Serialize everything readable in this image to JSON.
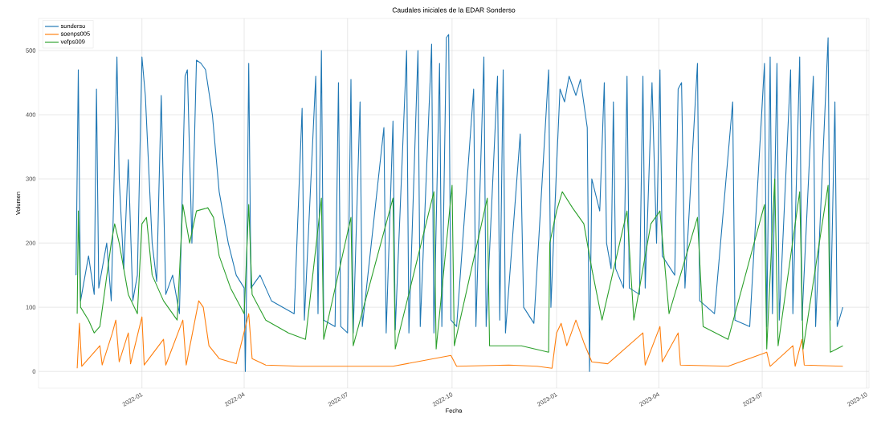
{
  "chart_data": {
    "type": "line",
    "title": "Caudales iniciales de la EDAR Sonderso",
    "xlabel": "Fecha",
    "ylabel": "Volumen",
    "xlim": [
      "2021-10-02",
      "2023-10-03"
    ],
    "xticks": [
      "2022-01",
      "2022-04",
      "2022-07",
      "2022-10",
      "2023-01",
      "2023-04",
      "2023-07",
      "2023-10"
    ],
    "ylim": [
      -26,
      550
    ],
    "yticks": [
      0,
      100,
      200,
      300,
      400,
      500
    ],
    "grid": true,
    "legend": "top left",
    "line_style": "solid",
    "marker": "none",
    "series": [
      {
        "name": "sonderso",
        "color": "#1f77b4",
        "x": [
          "2021-11-04",
          "2021-11-06",
          "2021-11-08",
          "2021-11-15",
          "2021-11-20",
          "2021-11-22",
          "2021-11-24",
          "2021-12-01",
          "2021-12-05",
          "2021-12-10",
          "2021-12-12",
          "2021-12-16",
          "2021-12-20",
          "2021-12-24",
          "2021-12-28",
          "2022-01-01",
          "2022-01-04",
          "2022-01-10",
          "2022-01-14",
          "2022-01-18",
          "2022-01-22",
          "2022-01-28",
          "2022-02-03",
          "2022-02-08",
          "2022-02-10",
          "2022-02-14",
          "2022-02-18",
          "2022-02-22",
          "2022-02-26",
          "2022-03-04",
          "2022-03-10",
          "2022-03-18",
          "2022-03-25",
          "2022-04-01",
          "2022-04-02",
          "2022-04-03",
          "2022-04-05",
          "2022-04-07",
          "2022-04-15",
          "2022-04-25",
          "2022-05-05",
          "2022-05-15",
          "2022-05-22",
          "2022-05-24",
          "2022-06-03",
          "2022-06-05",
          "2022-06-08",
          "2022-06-10",
          "2022-06-20",
          "2022-06-23",
          "2022-06-25",
          "2022-07-01",
          "2022-07-04",
          "2022-07-06",
          "2022-07-12",
          "2022-07-14",
          "2022-08-02",
          "2022-08-04",
          "2022-08-10",
          "2022-08-12",
          "2022-08-22",
          "2022-08-24",
          "2022-09-01",
          "2022-09-03",
          "2022-09-13",
          "2022-09-15",
          "2022-09-20",
          "2022-09-22",
          "2022-09-26",
          "2022-09-28",
          "2022-09-30",
          "2022-10-05",
          "2022-10-20",
          "2022-10-22",
          "2022-10-29",
          "2022-10-31",
          "2022-11-10",
          "2022-11-12",
          "2022-11-15",
          "2022-11-17",
          "2022-11-30",
          "2022-12-03",
          "2022-12-12",
          "2022-12-25",
          "2022-12-27",
          "2023-01-01",
          "2023-01-04",
          "2023-01-08",
          "2023-01-12",
          "2023-01-18",
          "2023-01-22",
          "2023-01-28",
          "2023-01-30",
          "2023-02-01",
          "2023-02-08",
          "2023-02-12",
          "2023-02-14",
          "2023-02-18",
          "2023-02-20",
          "2023-02-22",
          "2023-03-01",
          "2023-03-04",
          "2023-03-06",
          "2023-03-15",
          "2023-03-18",
          "2023-03-20",
          "2023-03-26",
          "2023-03-30",
          "2023-04-02",
          "2023-04-04",
          "2023-04-15",
          "2023-04-18",
          "2023-04-21",
          "2023-04-24",
          "2023-05-05",
          "2023-05-07",
          "2023-05-20",
          "2023-06-05",
          "2023-06-07",
          "2023-06-20",
          "2023-07-03",
          "2023-07-05",
          "2023-07-08",
          "2023-07-10",
          "2023-07-14",
          "2023-07-16",
          "2023-07-26",
          "2023-07-28",
          "2023-08-03",
          "2023-08-05",
          "2023-08-15",
          "2023-08-17",
          "2023-08-28",
          "2023-08-30",
          "2023-09-03",
          "2023-09-05",
          "2023-09-10"
        ],
        "values": [
          150,
          470,
          110,
          180,
          120,
          440,
          130,
          200,
          110,
          490,
          300,
          160,
          330,
          110,
          150,
          490,
          430,
          200,
          140,
          430,
          120,
          150,
          90,
          460,
          470,
          200,
          485,
          480,
          470,
          400,
          280,
          200,
          150,
          130,
          0,
          120,
          480,
          130,
          150,
          110,
          100,
          90,
          410,
          80,
          460,
          90,
          500,
          80,
          70,
          450,
          70,
          60,
          455,
          60,
          420,
          70,
          380,
          60,
          390,
          65,
          500,
          60,
          500,
          70,
          510,
          60,
          480,
          70,
          520,
          525,
          80,
          70,
          440,
          70,
          490,
          70,
          460,
          80,
          470,
          60,
          370,
          100,
          75,
          470,
          100,
          320,
          440,
          420,
          460,
          430,
          455,
          380,
          0,
          300,
          250,
          450,
          200,
          160,
          420,
          160,
          130,
          460,
          130,
          120,
          460,
          130,
          450,
          200,
          470,
          180,
          150,
          440,
          450,
          130,
          480,
          110,
          90,
          420,
          80,
          70,
          480,
          70,
          490,
          90,
          480,
          80,
          470,
          90,
          490,
          80,
          460,
          70,
          520,
          80,
          420,
          70,
          100
        ]
      },
      {
        "name": "soenps005",
        "color": "#ff7f0e",
        "x": [
          "2021-11-05",
          "2021-11-07",
          "2021-11-09",
          "2021-11-25",
          "2021-11-27",
          "2021-12-06",
          "2021-12-09",
          "2021-12-12",
          "2021-12-20",
          "2021-12-22",
          "2022-01-01",
          "2022-01-03",
          "2022-01-20",
          "2022-01-22",
          "2022-02-06",
          "2022-02-09",
          "2022-02-20",
          "2022-02-24",
          "2022-03-01",
          "2022-03-10",
          "2022-03-25",
          "2022-04-05",
          "2022-04-08",
          "2022-04-20",
          "2022-05-20",
          "2022-06-10",
          "2022-07-05",
          "2022-08-10",
          "2022-09-30",
          "2022-10-05",
          "2022-11-20",
          "2022-12-15",
          "2022-12-28",
          "2023-01-01",
          "2023-01-05",
          "2023-01-10",
          "2023-01-18",
          "2023-01-25",
          "2023-02-01",
          "2023-02-15",
          "2023-03-18",
          "2023-03-20",
          "2023-04-02",
          "2023-04-04",
          "2023-04-18",
          "2023-04-20",
          "2023-06-01",
          "2023-07-05",
          "2023-07-08",
          "2023-07-28",
          "2023-07-30",
          "2023-08-05",
          "2023-08-07",
          "2023-09-10"
        ],
        "values": [
          5,
          75,
          8,
          40,
          10,
          60,
          80,
          15,
          60,
          12,
          85,
          10,
          50,
          10,
          80,
          10,
          110,
          100,
          40,
          20,
          12,
          90,
          20,
          10,
          8,
          8,
          8,
          8,
          25,
          8,
          10,
          8,
          5,
          60,
          75,
          40,
          80,
          45,
          15,
          12,
          60,
          10,
          70,
          15,
          60,
          10,
          8,
          30,
          8,
          40,
          8,
          50,
          10,
          8
        ]
      },
      {
        "name": "vefps009",
        "color": "#2ca02c",
        "x": [
          "2021-11-05",
          "2021-11-06",
          "2021-11-08",
          "2021-11-15",
          "2021-11-20",
          "2021-11-25",
          "2021-12-05",
          "2021-12-08",
          "2021-12-12",
          "2021-12-20",
          "2021-12-28",
          "2022-01-01",
          "2022-01-05",
          "2022-01-10",
          "2022-01-20",
          "2022-02-01",
          "2022-02-06",
          "2022-02-12",
          "2022-02-18",
          "2022-02-28",
          "2022-03-05",
          "2022-03-10",
          "2022-03-20",
          "2022-04-01",
          "2022-04-05",
          "2022-04-08",
          "2022-04-20",
          "2022-05-10",
          "2022-05-25",
          "2022-06-08",
          "2022-06-10",
          "2022-07-04",
          "2022-07-06",
          "2022-08-10",
          "2022-08-12",
          "2022-09-15",
          "2022-09-17",
          "2022-10-01",
          "2022-10-03",
          "2022-11-01",
          "2022-11-03",
          "2022-12-01",
          "2022-12-25",
          "2022-12-26",
          "2023-01-01",
          "2023-01-06",
          "2023-01-15",
          "2023-01-25",
          "2023-02-01",
          "2023-02-10",
          "2023-03-04",
          "2023-03-10",
          "2023-03-25",
          "2023-04-02",
          "2023-04-10",
          "2023-05-05",
          "2023-05-10",
          "2023-06-01",
          "2023-07-03",
          "2023-07-05",
          "2023-07-12",
          "2023-07-15",
          "2023-08-03",
          "2023-08-06",
          "2023-08-28",
          "2023-08-30",
          "2023-09-10"
        ],
        "values": [
          90,
          250,
          100,
          80,
          60,
          70,
          200,
          230,
          200,
          120,
          90,
          230,
          240,
          150,
          110,
          80,
          260,
          200,
          250,
          255,
          240,
          180,
          130,
          90,
          260,
          120,
          80,
          60,
          50,
          270,
          50,
          240,
          40,
          270,
          35,
          280,
          35,
          290,
          40,
          270,
          40,
          40,
          30,
          200,
          250,
          280,
          255,
          230,
          160,
          80,
          250,
          80,
          230,
          250,
          90,
          240,
          70,
          50,
          260,
          35,
          300,
          40,
          280,
          35,
          290,
          30,
          40
        ]
      }
    ]
  }
}
